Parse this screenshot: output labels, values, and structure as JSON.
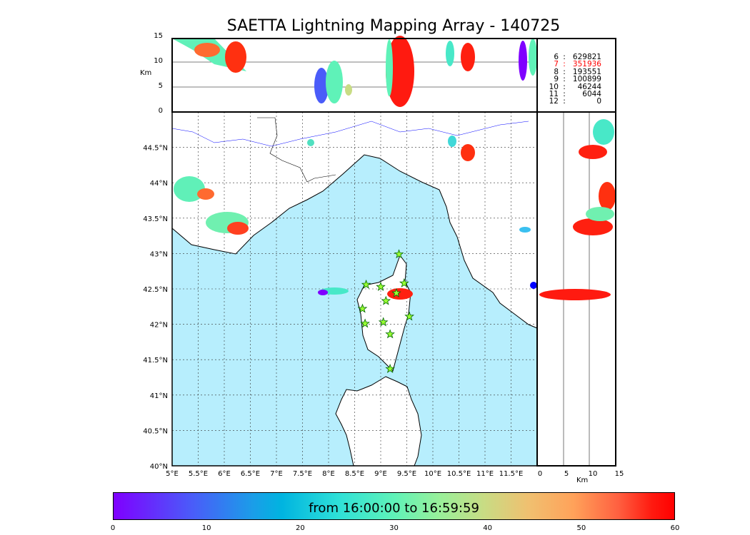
{
  "title": "SAETTA Lightning Mapping Array - 140725",
  "chart_data": {
    "type": "scatter",
    "title": "SAETTA Lightning Mapping Array - 140725",
    "map": {
      "lon_range": [
        5,
        12
      ],
      "lat_range": [
        40,
        45
      ],
      "lon_ticks": [
        "5°E",
        "5.5°E",
        "6°E",
        "6.5°E",
        "7°E",
        "7.5°E",
        "8°E",
        "8.5°E",
        "9°E",
        "9.5°E",
        "10°E",
        "10.5°E",
        "11°E",
        "11.5°E"
      ],
      "lat_ticks": [
        "40°N",
        "40.5°N",
        "41°N",
        "41.5°N",
        "42°N",
        "42.5°N",
        "43°N",
        "43.5°N",
        "44°N",
        "44.5°N"
      ]
    },
    "altitude_panel": {
      "ylabel": "Km",
      "ylim": [
        0,
        15
      ],
      "ticks": [
        "0",
        "5",
        "10",
        "15"
      ]
    },
    "side_panel": {
      "xlabel": "Km",
      "xlim": [
        0,
        15
      ],
      "ticks": [
        "0",
        "5",
        "10",
        "15"
      ]
    },
    "station_counts": [
      {
        "n": "6",
        "v": "629821",
        "highlight": false
      },
      {
        "n": "7",
        "v": "351936",
        "highlight": true
      },
      {
        "n": "8",
        "v": "193551",
        "highlight": false
      },
      {
        "n": "9",
        "v": "100899",
        "highlight": false
      },
      {
        "n": "10",
        "v": "46244",
        "highlight": false
      },
      {
        "n": "11",
        "v": "6044",
        "highlight": false
      },
      {
        "n": "12",
        "v": "0",
        "highlight": false
      }
    ],
    "stations": [
      [
        9.35,
        42.99
      ],
      [
        8.72,
        42.56
      ],
      [
        9.0,
        42.53
      ],
      [
        9.45,
        42.58
      ],
      [
        9.3,
        42.44
      ],
      [
        9.1,
        42.33
      ],
      [
        8.65,
        42.22
      ],
      [
        9.05,
        42.03
      ],
      [
        8.7,
        42.01
      ],
      [
        9.55,
        42.11
      ],
      [
        9.18,
        41.86
      ],
      [
        9.18,
        41.37
      ]
    ],
    "colorbar": {
      "label": "from 16:00:00 to 16:59:59",
      "range": [
        0,
        60
      ],
      "ticks": [
        "0",
        "10",
        "20",
        "30",
        "40",
        "50",
        "60"
      ]
    },
    "highlight_color": "#ff0000"
  }
}
